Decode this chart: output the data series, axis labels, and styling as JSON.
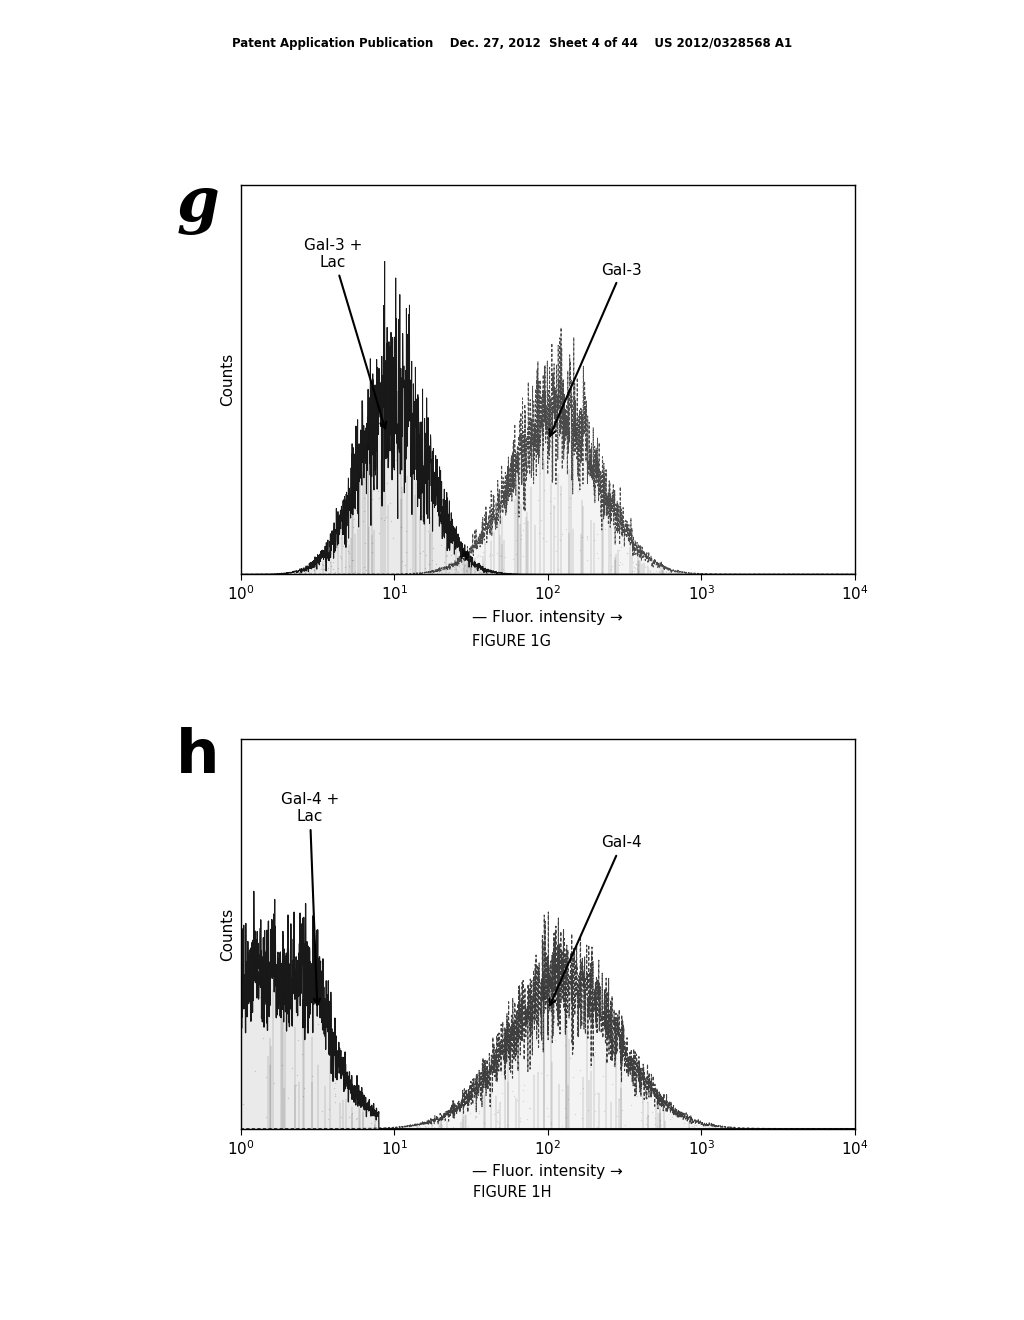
{
  "header_text": "Patent Application Publication    Dec. 27, 2012  Sheet 4 of 44    US 2012/0328568 A1",
  "fig1g_label": "g",
  "fig1h_label": "h",
  "fig1g_caption": "FIGURE 1G",
  "fig1h_caption": "FIGURE 1H",
  "xlabel": "Fluor. intensity",
  "ylabel": "Counts",
  "annotation_g1": "Gal-3 +\nLac",
  "annotation_g2": "Gal-3",
  "annotation_h1": "Gal-4 +\nLac",
  "annotation_h2": "Gal-4",
  "bg_color": "#ffffff"
}
